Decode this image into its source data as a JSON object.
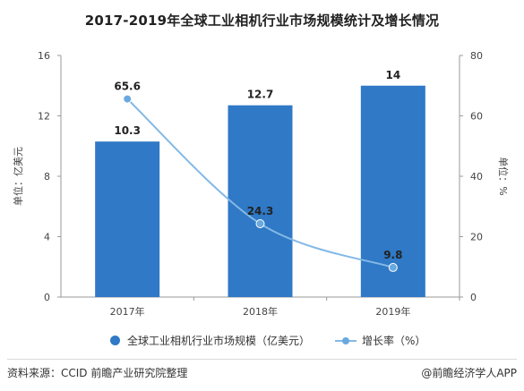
{
  "title": "2017-2019年全球工业相机行业市场规模统计及增长情况",
  "footer": {
    "source": "资料来源：CCID 前瞻产业研究院整理",
    "brand": "@前瞻经济学人APP"
  },
  "chart_data": {
    "type": "bar",
    "categories": [
      "2017年",
      "2018年",
      "2019年"
    ],
    "series": [
      {
        "name": "全球工业相机行业市场规模（亿美元）",
        "type": "bar",
        "axis": "left",
        "values": [
          10.3,
          12.7,
          14
        ],
        "labels": [
          "10.3",
          "12.7",
          "14"
        ],
        "color": "#2f79c6"
      },
      {
        "name": "增长率（%）",
        "type": "line",
        "axis": "right",
        "values": [
          65.6,
          24.3,
          9.8
        ],
        "labels": [
          "65.6",
          "24.3",
          "9.8"
        ],
        "color": "#6aa9e0"
      }
    ],
    "ylabel": "单位：亿美元",
    "y2label": "单位：%",
    "ylim": [
      0,
      16
    ],
    "y2lim": [
      0,
      80
    ],
    "yticks": [
      0,
      4,
      8,
      12,
      16
    ],
    "y2ticks": [
      0,
      20,
      40,
      60,
      80
    ],
    "grid": false,
    "legend": "bottom"
  }
}
